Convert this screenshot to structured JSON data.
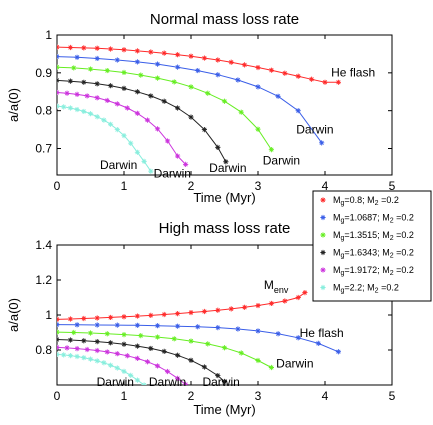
{
  "colors": {
    "red": "#ff2a2a",
    "blue": "#3a5ee8",
    "green": "#66ee22",
    "black": "#222222",
    "magenta": "#cc33dd",
    "cyan": "#88eedd"
  },
  "legend": {
    "entries": [
      {
        "pre": "M",
        "sub": "g",
        "mid": "=0.8; M",
        "sub2": "2",
        "post": " =0.2",
        "color": "#ff2a2a",
        "marker": "*"
      },
      {
        "pre": "M",
        "sub": "g",
        "mid": "=1.0687; M",
        "sub2": "2",
        "post": " =0.2",
        "color": "#3a5ee8",
        "marker": "*"
      },
      {
        "pre": "M",
        "sub": "g",
        "mid": "=1.3515; M",
        "sub2": "2",
        "post": " =0.2",
        "color": "#66ee22",
        "marker": "*"
      },
      {
        "pre": "M",
        "sub": "g",
        "mid": "=1.6343; M",
        "sub2": "2",
        "post": " =0.2",
        "color": "#222222",
        "marker": "*"
      },
      {
        "pre": "M",
        "sub": "g",
        "mid": "=1.9172; M",
        "sub2": "2",
        "post": " =0.2",
        "color": "#cc33dd",
        "marker": "*"
      },
      {
        "pre": "M",
        "sub": "g",
        "mid": "=2.2; M",
        "sub2": "2",
        "post": " =0.2",
        "color": "#88eedd",
        "marker": "*"
      }
    ]
  },
  "chart_data": [
    {
      "type": "line",
      "title": "Normal mass loss rate",
      "xlabel": "Time (Myr)",
      "ylabel": "a/a(0)",
      "xlim": [
        0,
        5
      ],
      "ylim": [
        0.63,
        1.0
      ],
      "xticks": [
        0,
        1,
        2,
        3,
        4,
        5
      ],
      "yticks": [
        0.7,
        0.8,
        0.9,
        1.0
      ],
      "ytick_labels": [
        "0.7",
        "0.8",
        "0.9",
        "1"
      ],
      "series": [
        {
          "x": [
            0,
            0.2,
            0.4,
            0.6,
            0.8,
            1.0,
            1.2,
            1.4,
            1.6,
            1.8,
            2.0,
            2.2,
            2.4,
            2.6,
            2.8,
            3.0,
            3.2,
            3.4,
            3.6,
            3.8,
            4.0,
            4.2
          ],
          "y": [
            0.968,
            0.967,
            0.966,
            0.965,
            0.963,
            0.961,
            0.958,
            0.955,
            0.952,
            0.948,
            0.944,
            0.939,
            0.934,
            0.928,
            0.921,
            0.914,
            0.907,
            0.899,
            0.891,
            0.883,
            0.875,
            0.875
          ]
        },
        {
          "x": [
            0,
            0.3,
            0.6,
            0.9,
            1.2,
            1.5,
            1.8,
            2.1,
            2.4,
            2.7,
            3.0,
            3.3,
            3.6,
            3.95
          ],
          "y": [
            0.943,
            0.941,
            0.938,
            0.934,
            0.929,
            0.923,
            0.915,
            0.906,
            0.895,
            0.881,
            0.863,
            0.838,
            0.8,
            0.715
          ]
        },
        {
          "x": [
            0,
            0.25,
            0.5,
            0.75,
            1.0,
            1.25,
            1.5,
            1.75,
            2.0,
            2.25,
            2.5,
            2.75,
            3.0,
            3.2
          ],
          "y": [
            0.915,
            0.913,
            0.91,
            0.906,
            0.901,
            0.894,
            0.886,
            0.876,
            0.863,
            0.846,
            0.825,
            0.796,
            0.751,
            0.697
          ]
        },
        {
          "x": [
            0,
            0.2,
            0.4,
            0.6,
            0.8,
            1.0,
            1.2,
            1.4,
            1.6,
            1.8,
            2.0,
            2.2,
            2.4,
            2.52
          ],
          "y": [
            0.88,
            0.878,
            0.875,
            0.871,
            0.866,
            0.859,
            0.85,
            0.839,
            0.825,
            0.807,
            0.783,
            0.75,
            0.703,
            0.665
          ]
        },
        {
          "x": [
            0,
            0.15,
            0.3,
            0.45,
            0.6,
            0.75,
            0.9,
            1.05,
            1.2,
            1.35,
            1.5,
            1.65,
            1.8,
            1.92
          ],
          "y": [
            0.848,
            0.846,
            0.843,
            0.839,
            0.834,
            0.827,
            0.818,
            0.807,
            0.793,
            0.775,
            0.752,
            0.72,
            0.68,
            0.658
          ]
        },
        {
          "x": [
            0,
            0.1,
            0.2,
            0.3,
            0.4,
            0.5,
            0.6,
            0.7,
            0.8,
            0.9,
            1.0,
            1.1,
            1.2,
            1.3,
            1.4
          ],
          "y": [
            0.812,
            0.81,
            0.807,
            0.803,
            0.798,
            0.792,
            0.784,
            0.775,
            0.764,
            0.75,
            0.734,
            0.714,
            0.69,
            0.666,
            0.64
          ]
        }
      ],
      "annotations": [
        {
          "text": "He flash",
          "x": 4.42,
          "y": 0.89
        },
        {
          "text": "Darwin",
          "x": 3.85,
          "y": 0.74
        },
        {
          "text": "Darwin",
          "x": 3.35,
          "y": 0.658
        },
        {
          "text": "Darwin",
          "x": 2.55,
          "y": 0.638
        },
        {
          "text": "Darwin",
          "x": 1.72,
          "y": 0.624
        },
        {
          "text": "Darwin",
          "x": 0.92,
          "y": 0.646
        }
      ]
    },
    {
      "type": "line",
      "title": "High mass loss rate",
      "xlabel": "Time (Myr)",
      "ylabel": "a/a(0)",
      "xlim": [
        0,
        5
      ],
      "ylim": [
        0.6,
        1.4
      ],
      "xticks": [
        0,
        1,
        2,
        3,
        4,
        5
      ],
      "yticks": [
        0.8,
        1.0,
        1.2,
        1.4
      ],
      "ytick_labels": [
        "0.8",
        "1",
        "1.2",
        "1.4"
      ],
      "series": [
        {
          "x": [
            0,
            0.2,
            0.4,
            0.6,
            0.8,
            1.0,
            1.2,
            1.4,
            1.6,
            1.8,
            2.0,
            2.2,
            2.4,
            2.6,
            2.8,
            3.0,
            3.2,
            3.4,
            3.6,
            3.7
          ],
          "y": [
            0.975,
            0.977,
            0.98,
            0.983,
            0.986,
            0.99,
            0.994,
            0.998,
            1.003,
            1.008,
            1.014,
            1.02,
            1.027,
            1.035,
            1.044,
            1.054,
            1.066,
            1.08,
            1.1,
            1.128
          ]
        },
        {
          "x": [
            0,
            0.3,
            0.6,
            0.9,
            1.2,
            1.5,
            1.8,
            2.1,
            2.4,
            2.7,
            3.0,
            3.3,
            3.6,
            3.9,
            4.2
          ],
          "y": [
            0.945,
            0.944,
            0.943,
            0.942,
            0.941,
            0.939,
            0.936,
            0.933,
            0.928,
            0.92,
            0.909,
            0.893,
            0.87,
            0.838,
            0.79
          ]
        },
        {
          "x": [
            0,
            0.25,
            0.5,
            0.75,
            1.0,
            1.25,
            1.5,
            1.75,
            2.0,
            2.25,
            2.5,
            2.75,
            3.0,
            3.2
          ],
          "y": [
            0.902,
            0.9,
            0.897,
            0.893,
            0.888,
            0.882,
            0.874,
            0.864,
            0.851,
            0.835,
            0.813,
            0.783,
            0.74,
            0.7
          ]
        },
        {
          "x": [
            0,
            0.2,
            0.4,
            0.6,
            0.8,
            1.0,
            1.2,
            1.4,
            1.6,
            1.8,
            2.0,
            2.2,
            2.4,
            2.5
          ],
          "y": [
            0.86,
            0.857,
            0.853,
            0.848,
            0.841,
            0.833,
            0.822,
            0.809,
            0.792,
            0.77,
            0.741,
            0.703,
            0.654,
            0.62
          ]
        },
        {
          "x": [
            0,
            0.15,
            0.3,
            0.45,
            0.6,
            0.75,
            0.9,
            1.05,
            1.2,
            1.35,
            1.5,
            1.65,
            1.8,
            1.92
          ],
          "y": [
            0.815,
            0.812,
            0.808,
            0.803,
            0.797,
            0.789,
            0.779,
            0.767,
            0.752,
            0.733,
            0.709,
            0.677,
            0.638,
            0.603
          ]
        },
        {
          "x": [
            0,
            0.1,
            0.2,
            0.3,
            0.4,
            0.5,
            0.6,
            0.7,
            0.8,
            0.9,
            1.0,
            1.1,
            1.2,
            1.3
          ],
          "y": [
            0.775,
            0.772,
            0.768,
            0.763,
            0.756,
            0.748,
            0.738,
            0.727,
            0.713,
            0.697,
            0.678,
            0.655,
            0.628,
            0.6
          ]
        }
      ],
      "annotations": [
        {
          "text": "M",
          "sub": "env",
          "x": 3.27,
          "y": 1.15
        },
        {
          "text": "He flash",
          "x": 3.95,
          "y": 0.875
        },
        {
          "text": "Darwin",
          "x": 3.55,
          "y": 0.7
        },
        {
          "text": "Darwin",
          "x": 2.45,
          "y": 0.595
        },
        {
          "text": "Darwin",
          "x": 1.65,
          "y": 0.595
        },
        {
          "text": "Darwin",
          "x": 0.87,
          "y": 0.595
        }
      ]
    }
  ]
}
